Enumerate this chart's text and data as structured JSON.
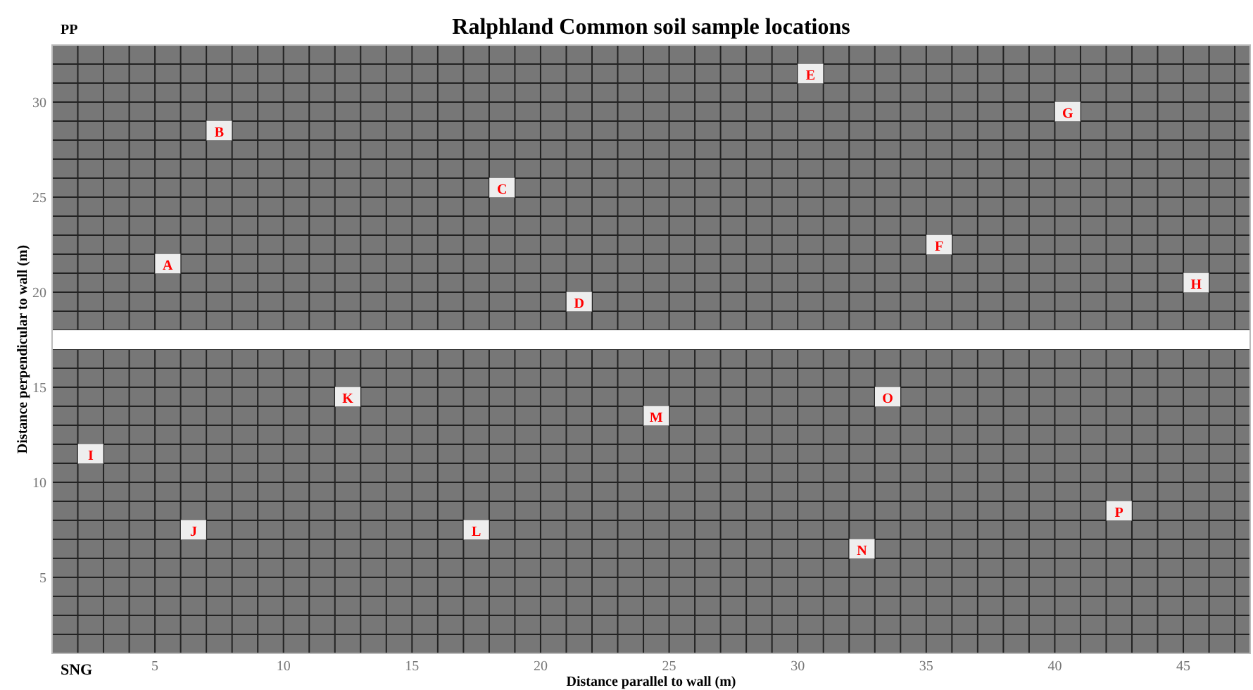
{
  "chart_data": {
    "type": "scatter",
    "title": "Ralphland Common soil sample locations",
    "xlabel": "Distance parallel to wall (m)",
    "ylabel": "Distance perpendicular to wall (m)",
    "annotations": [
      "PP",
      "SNG"
    ],
    "x": [
      5.5,
      7.5,
      18.5,
      21.5,
      30.5,
      35.5,
      40.5,
      45.5,
      2.5,
      6.5,
      12.5,
      17.5,
      24.5,
      32.5,
      33.5,
      42.5
    ],
    "series": [
      {
        "color": "#eeeeee",
        "marker": "square",
        "values": [
          21.5,
          28.5,
          25.5,
          19.5,
          31.5,
          22.5,
          29.5,
          20.5,
          11.5,
          7.5,
          14.5,
          7.5,
          13.5,
          6.5,
          14.5,
          8.5
        ],
        "value_labels": [
          "A",
          "B",
          "C",
          "D",
          "E",
          "F",
          "G",
          "H",
          "I",
          "J",
          "K",
          "L",
          "M",
          "N",
          "O",
          "P"
        ]
      }
    ],
    "xlim": [
      1,
      47.6
    ],
    "ylim": [
      1,
      33
    ],
    "xticks": [
      {
        "value": 1,
        "label": null
      },
      {
        "value": 2,
        "label": null
      },
      {
        "value": 3,
        "label": null
      },
      {
        "value": 4,
        "label": null
      },
      5,
      {
        "value": 6,
        "label": null
      },
      {
        "value": 7,
        "label": null
      },
      {
        "value": 8,
        "label": null
      },
      {
        "value": 9,
        "label": null
      },
      10,
      {
        "value": 11,
        "label": null
      },
      {
        "value": 12,
        "label": null
      },
      {
        "value": 13,
        "label": null
      },
      {
        "value": 14,
        "label": null
      },
      15,
      {
        "value": 16,
        "label": null
      },
      {
        "value": 17,
        "label": null
      },
      {
        "value": 18,
        "label": null
      },
      {
        "value": 19,
        "label": null
      },
      20,
      {
        "value": 21,
        "label": null
      },
      {
        "value": 22,
        "label": null
      },
      {
        "value": 23,
        "label": null
      },
      {
        "value": 24,
        "label": null
      },
      25,
      {
        "value": 26,
        "label": null
      },
      {
        "value": 27,
        "label": null
      },
      {
        "value": 28,
        "label": null
      },
      {
        "value": 29,
        "label": null
      },
      30,
      {
        "value": 31,
        "label": null
      },
      {
        "value": 32,
        "label": null
      },
      {
        "value": 33,
        "label": null
      },
      {
        "value": 34,
        "label": null
      },
      35,
      {
        "value": 36,
        "label": null
      },
      {
        "value": 37,
        "label": null
      },
      {
        "value": 38,
        "label": null
      },
      {
        "value": 39,
        "label": null
      },
      40,
      {
        "value": 41,
        "label": null
      },
      {
        "value": 42,
        "label": null
      },
      {
        "value": 43,
        "label": null
      },
      {
        "value": 44,
        "label": null
      },
      45,
      {
        "value": 46,
        "label": null
      },
      {
        "value": 47,
        "label": null
      }
    ],
    "yticks": [
      {
        "value": 1,
        "label": null
      },
      {
        "value": 2,
        "label": null
      },
      {
        "value": 3,
        "label": null
      },
      {
        "value": 4,
        "label": null
      },
      5,
      {
        "value": 6,
        "label": null
      },
      {
        "value": 7,
        "label": null
      },
      {
        "value": 8,
        "label": null
      },
      {
        "value": 9,
        "label": null
      },
      10,
      {
        "value": 11,
        "label": null
      },
      {
        "value": 12,
        "label": null
      },
      {
        "value": 13,
        "label": null
      },
      {
        "value": 14,
        "label": null
      },
      15,
      {
        "value": 16,
        "label": null
      },
      {
        "value": 17,
        "label": null
      },
      {
        "value": 18,
        "label": null
      },
      {
        "value": 19,
        "label": null
      },
      20,
      {
        "value": 21,
        "label": null
      },
      {
        "value": 22,
        "label": null
      },
      {
        "value": 23,
        "label": null
      },
      {
        "value": 24,
        "label": null
      },
      25,
      {
        "value": 26,
        "label": null
      },
      {
        "value": 27,
        "label": null
      },
      {
        "value": 28,
        "label": null
      },
      {
        "value": 29,
        "label": null
      },
      30,
      {
        "value": 31,
        "label": null
      },
      {
        "value": 32,
        "label": null
      },
      {
        "value": 33,
        "label": null
      }
    ],
    "bands": [
      {
        "axis": "y",
        "from": 17,
        "to": 18,
        "color": "#ffffff"
      }
    ],
    "grid": true
  }
}
